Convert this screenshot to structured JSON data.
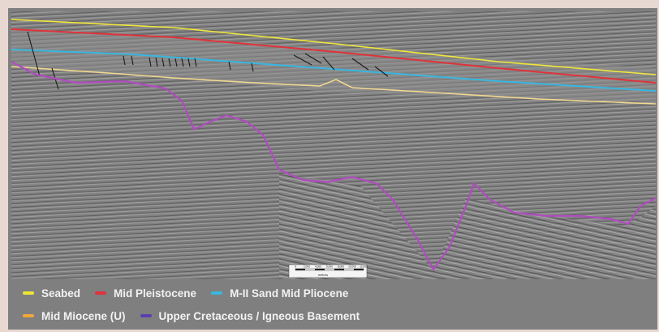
{
  "legend": {
    "items": [
      {
        "label": "Seabed",
        "color": "#f0e63a",
        "icon": "line-swatch"
      },
      {
        "label": "Mid Pleistocene",
        "color": "#e0323a",
        "icon": "line-swatch"
      },
      {
        "label": "M-II Sand Mid Pliocene",
        "color": "#39b6e0",
        "icon": "line-swatch"
      },
      {
        "label": "Mid Miocene (U)",
        "color": "#f2a63a",
        "icon": "line-swatch"
      },
      {
        "label": "Upper Cretaceous / Igneous Basement",
        "color": "#5a3fb0",
        "icon": "line-swatch"
      }
    ]
  },
  "colors": {
    "background": "#e8d8d2",
    "basement_trace": "#b04cc0",
    "seismic_base": "#808080"
  },
  "scale_bar": {
    "ticks": [
      "0",
      "2,000",
      "4,000",
      "6,000",
      "8,000",
      "10,000",
      "12,000"
    ],
    "unit": "metres"
  }
}
